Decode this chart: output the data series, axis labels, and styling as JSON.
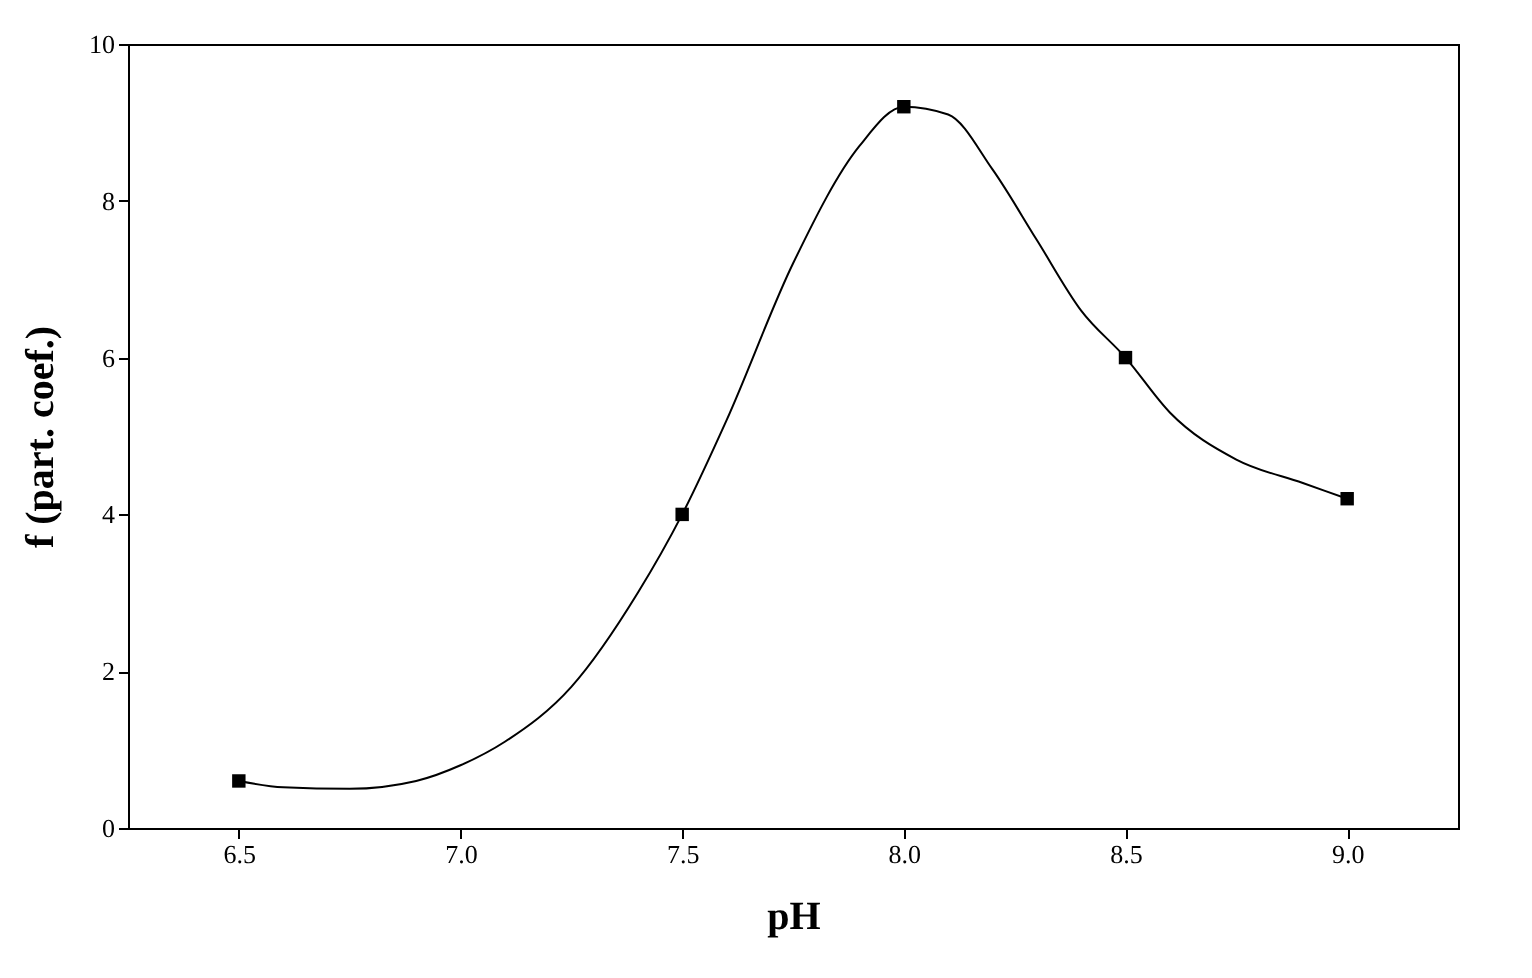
{
  "chart_data": {
    "type": "scatter",
    "xlabel": "pH",
    "ylabel": "f (part. coef.)",
    "xlim": [
      6.25,
      9.25
    ],
    "xticks": [
      {
        "value": 6.5,
        "label": "6.5"
      },
      {
        "value": 7,
        "label": "7.0"
      },
      {
        "value": 7.5,
        "label": "7.5"
      },
      {
        "value": 8,
        "label": "8.0"
      },
      {
        "value": 8.5,
        "label": "8.5"
      },
      {
        "value": 9,
        "label": "9.0"
      }
    ],
    "ylim": [
      0,
      10
    ],
    "yticks": [
      0,
      2,
      4,
      6,
      8,
      10
    ],
    "grid": false,
    "series": [
      {
        "type": "line",
        "color": "#000000",
        "line_style": "solid",
        "x": [
          6.5,
          6.6,
          6.75,
          6.9,
          7.0,
          7.1,
          7.25,
          7.4,
          7.5,
          7.6,
          7.75,
          7.9,
          8.0,
          8.1,
          8.2,
          8.3,
          8.4,
          8.5,
          8.6,
          8.75,
          8.9,
          9.0
        ],
        "values": [
          0.6,
          0.52,
          0.5,
          0.6,
          0.8,
          1.1,
          1.8,
          3.0,
          4.0,
          5.2,
          7.2,
          8.7,
          9.2,
          9.1,
          8.4,
          7.5,
          6.6,
          6.0,
          5.3,
          4.7,
          4.4,
          4.2
        ]
      },
      {
        "color": "#000000",
        "marker": "square",
        "x": [
          6.5,
          7.5,
          8.0,
          8.5,
          9.0
        ],
        "values": [
          0.6,
          4.0,
          9.2,
          6.0,
          4.2
        ]
      }
    ]
  }
}
